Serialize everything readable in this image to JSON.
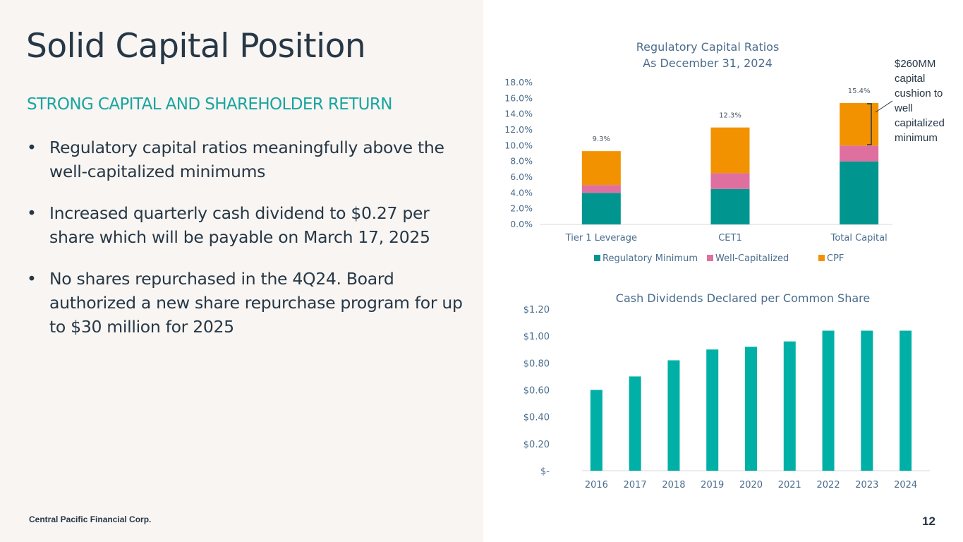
{
  "slide": {
    "title": "Solid Capital Position",
    "subtitle": "STRONG CAPITAL AND SHAREHOLDER RETURN",
    "bullets": [
      "Regulatory capital ratios meaningfully above the well-capitalized minimums",
      "Increased quarterly cash dividend to $0.27 per share which will be payable on March 17, 2025",
      "No shares repurchased in the 4Q24. Board authorized a new share repurchase program for up to $30 million for 2025"
    ],
    "bullet_glyph": "•",
    "footer_company": "Central Pacific Financial Corp.",
    "page_number": "12"
  },
  "colors": {
    "title": "#263746",
    "accent_teal": "#1aa5a0",
    "regulatory_minimum": "#00968f",
    "well_capitalized": "#df6f9f",
    "cpf": "#f29200",
    "dividend_bar": "#00b0a6",
    "axis_text": "#4a6c8c"
  },
  "chart_data": [
    {
      "type": "bar",
      "stacked": true,
      "title": "Regulatory Capital Ratios",
      "subtitle": "As December 31, 2024",
      "categories": [
        "Tier 1 Leverage",
        "CET1",
        "Total Capital"
      ],
      "series": [
        {
          "name": "Regulatory Minimum",
          "values": [
            4.0,
            4.5,
            8.0
          ],
          "color": "#00968f"
        },
        {
          "name": "Well-Capitalized",
          "values": [
            1.0,
            2.0,
            2.0
          ],
          "color": "#df6f9f"
        },
        {
          "name": "CPF",
          "values": [
            4.3,
            5.8,
            5.4
          ],
          "color": "#f29200"
        }
      ],
      "data_labels": [
        "9.3%",
        "12.3%",
        "15.4%"
      ],
      "ylim": [
        0,
        18
      ],
      "ytick_labels": [
        "0.0%",
        "2.0%",
        "4.0%",
        "6.0%",
        "8.0%",
        "10.0%",
        "12.0%",
        "14.0%",
        "16.0%",
        "18.0%"
      ],
      "grid": false,
      "legend_position": "bottom",
      "annotation": "$260MM capital cushion to well capitalized minimum"
    },
    {
      "type": "bar",
      "title": "Cash Dividends Declared per Common Share",
      "categories": [
        "2016",
        "2017",
        "2018",
        "2019",
        "2020",
        "2021",
        "2022",
        "2023",
        "2024"
      ],
      "values": [
        0.6,
        0.7,
        0.82,
        0.9,
        0.92,
        0.96,
        1.04,
        1.04,
        1.04
      ],
      "color": "#00b0a6",
      "ylim": [
        0,
        1.2
      ],
      "ytick_labels": [
        "$-",
        "$0.20",
        "$0.40",
        "$0.60",
        "$0.80",
        "$1.00",
        "$1.20"
      ],
      "grid": false
    }
  ]
}
